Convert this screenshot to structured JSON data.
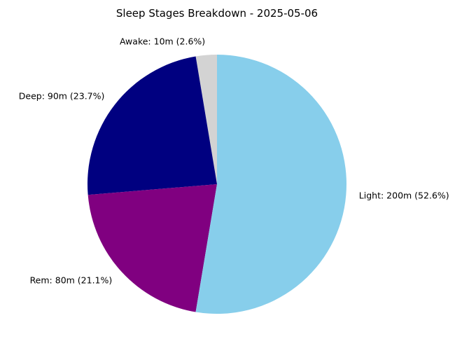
{
  "chart_data": {
    "type": "pie",
    "title": "Sleep Stages Breakdown - 2025-05-06",
    "start_angle_deg": 90,
    "direction": "counterclockwise",
    "slices": [
      {
        "name": "Awake",
        "minutes": 10,
        "percent": 2.6,
        "label": "Awake: 10m (2.6%)",
        "color": "#d3d3d3"
      },
      {
        "name": "Deep",
        "minutes": 90,
        "percent": 23.7,
        "label": "Deep: 90m (23.7%)",
        "color": "#000080"
      },
      {
        "name": "Rem",
        "minutes": 80,
        "percent": 21.1,
        "label": "Rem: 80m (21.1%)",
        "color": "#800080"
      },
      {
        "name": "Light",
        "minutes": 200,
        "percent": 52.6,
        "label": "Light: 200m (52.6%)",
        "color": "#87ceeb"
      }
    ]
  }
}
